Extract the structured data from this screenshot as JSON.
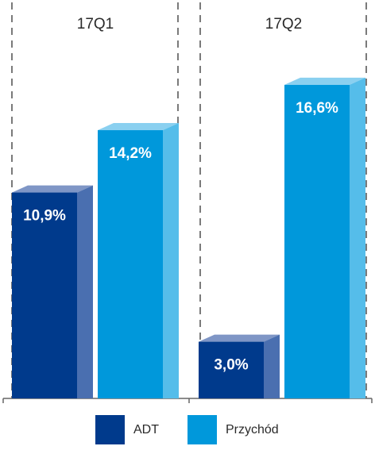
{
  "chart_data": {
    "type": "bar",
    "categories": [
      "17Q1",
      "17Q2"
    ],
    "series": [
      {
        "name": "ADT",
        "values": [
          10.9,
          3.0
        ],
        "labels": [
          "10,9%",
          "3,0%"
        ],
        "color": "#003a8c",
        "side_color": "#4a6fb0",
        "top_color": "#7f96c6"
      },
      {
        "name": "Przychód",
        "values": [
          14.2,
          16.6
        ],
        "labels": [
          "14,2%",
          "16,6%"
        ],
        "color": "#0098db",
        "side_color": "#55bdea",
        "top_color": "#8ad0f0"
      }
    ],
    "ylim": [
      0,
      20
    ],
    "grid": false,
    "legend": "bottom"
  }
}
